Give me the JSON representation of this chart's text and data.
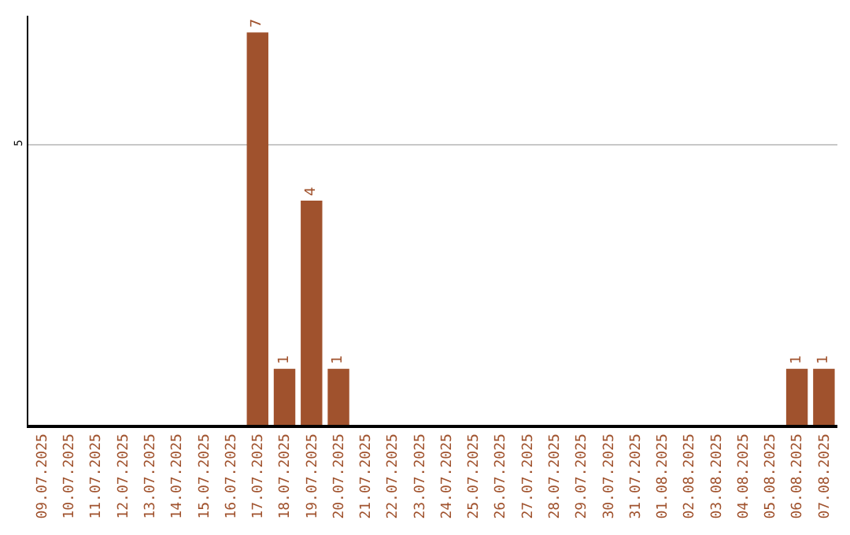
{
  "chart_data": {
    "type": "bar",
    "categories": [
      "09.07.2025",
      "10.07.2025",
      "11.07.2025",
      "12.07.2025",
      "13.07.2025",
      "14.07.2025",
      "15.07.2025",
      "16.07.2025",
      "17.07.2025",
      "18.07.2025",
      "19.07.2025",
      "20.07.2025",
      "21.07.2025",
      "22.07.2025",
      "23.07.2025",
      "24.07.2025",
      "25.07.2025",
      "26.07.2025",
      "27.07.2025",
      "28.07.2025",
      "29.07.2025",
      "30.07.2025",
      "31.07.2025",
      "01.08.2025",
      "02.08.2025",
      "03.08.2025",
      "04.08.2025",
      "05.08.2025",
      "06.08.2025",
      "07.08.2025"
    ],
    "values": [
      0,
      0,
      0,
      0,
      0,
      0,
      0,
      0,
      7,
      1,
      4,
      1,
      0,
      0,
      0,
      0,
      0,
      0,
      0,
      0,
      0,
      0,
      0,
      0,
      0,
      0,
      0,
      0,
      1,
      1
    ],
    "value_labels": [
      null,
      null,
      null,
      null,
      null,
      null,
      null,
      null,
      "7",
      "1",
      "4",
      "1",
      null,
      null,
      null,
      null,
      null,
      null,
      null,
      null,
      null,
      null,
      null,
      null,
      null,
      null,
      null,
      null,
      "1",
      "1"
    ],
    "color": "#a0522d",
    "ylim": [
      0,
      7.3
    ],
    "yticks": [
      5
    ],
    "grid": "y"
  }
}
